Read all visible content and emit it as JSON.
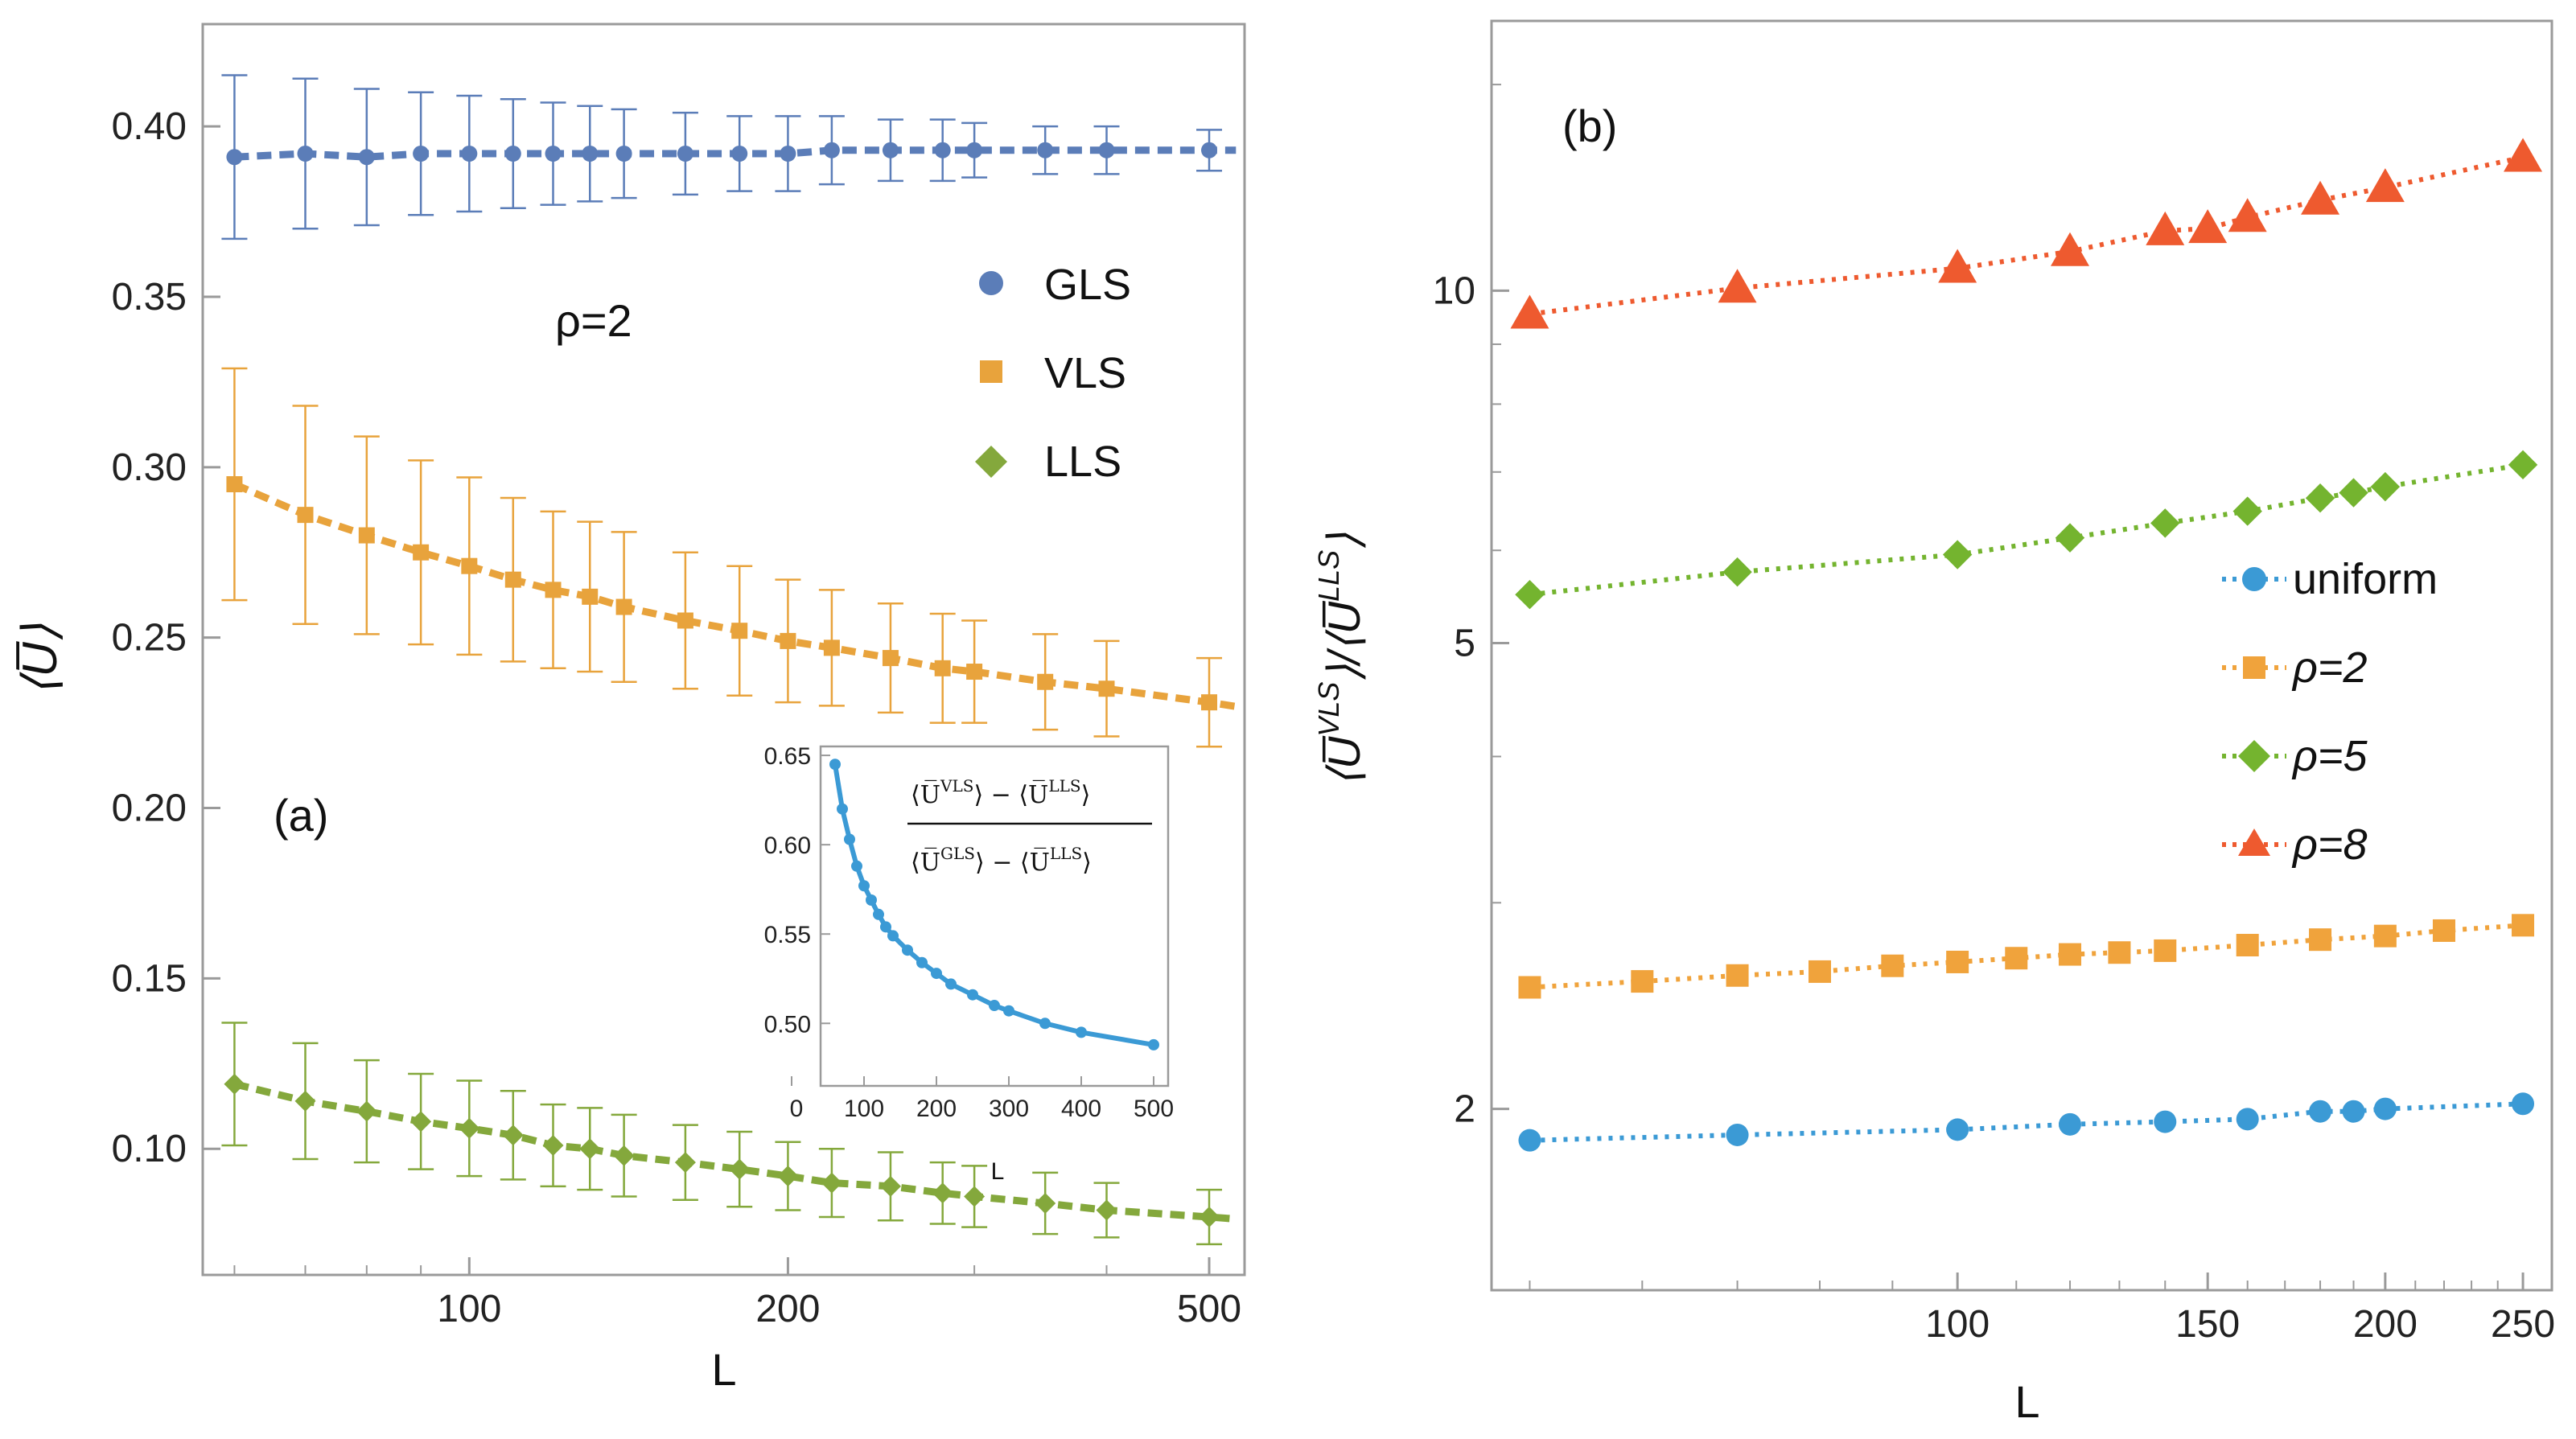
{
  "chart_data": [
    {
      "id": "a",
      "type": "scatter",
      "panel_label": "(a)",
      "annotation": "ρ=2",
      "xlabel": "L",
      "ylabel": "⟨U̅⟩",
      "xscale": "log",
      "xlim": [
        56,
        540
      ],
      "ylim": [
        0.063,
        0.43
      ],
      "xticks": [
        100,
        200,
        500
      ],
      "yticks": [
        0.1,
        0.15,
        0.2,
        0.25,
        0.3,
        0.35,
        0.4
      ],
      "ytick_labels": [
        "0.10",
        "0.15",
        "0.20",
        "0.25",
        "0.30",
        "0.35",
        "0.40"
      ],
      "legend_position": "right",
      "x": [
        60,
        70,
        80,
        90,
        100,
        110,
        120,
        130,
        140,
        160,
        180,
        200,
        220,
        250,
        280,
        300,
        350,
        400,
        500
      ],
      "series": [
        {
          "name": "GLS",
          "marker": "circle",
          "color": "#5B7DB8",
          "values": [
            0.391,
            0.392,
            0.391,
            0.392,
            0.392,
            0.392,
            0.392,
            0.392,
            0.392,
            0.392,
            0.392,
            0.392,
            0.393,
            0.393,
            0.393,
            0.393,
            0.393,
            0.393,
            0.393
          ],
          "errors": [
            0.024,
            0.022,
            0.02,
            0.018,
            0.017,
            0.016,
            0.015,
            0.014,
            0.013,
            0.012,
            0.011,
            0.011,
            0.01,
            0.009,
            0.009,
            0.008,
            0.007,
            0.007,
            0.006
          ]
        },
        {
          "name": "VLS",
          "marker": "square",
          "color": "#E8A33C",
          "values": [
            0.295,
            0.286,
            0.28,
            0.275,
            0.271,
            0.267,
            0.264,
            0.262,
            0.259,
            0.255,
            0.252,
            0.249,
            0.247,
            0.244,
            0.241,
            0.24,
            0.237,
            0.235,
            0.231
          ],
          "errors": [
            0.034,
            0.032,
            0.029,
            0.027,
            0.026,
            0.024,
            0.023,
            0.022,
            0.022,
            0.02,
            0.019,
            0.018,
            0.017,
            0.016,
            0.016,
            0.015,
            0.014,
            0.014,
            0.013
          ]
        },
        {
          "name": "LLS",
          "marker": "diamond",
          "color": "#84A83C",
          "values": [
            0.119,
            0.114,
            0.111,
            0.108,
            0.106,
            0.104,
            0.101,
            0.1,
            0.098,
            0.096,
            0.094,
            0.092,
            0.09,
            0.089,
            0.087,
            0.086,
            0.084,
            0.082,
            0.08
          ],
          "errors": [
            0.018,
            0.017,
            0.015,
            0.014,
            0.014,
            0.013,
            0.012,
            0.012,
            0.012,
            0.011,
            0.011,
            0.01,
            0.01,
            0.01,
            0.009,
            0.009,
            0.009,
            0.008,
            0.008
          ]
        }
      ],
      "inset": {
        "type": "line",
        "xlabel": "L",
        "xlim": [
          40,
          520
        ],
        "ylim": [
          0.465,
          0.655
        ],
        "xticks": [
          100,
          200,
          300,
          400,
          500
        ],
        "yticks": [
          0.5,
          0.55,
          0.6,
          0.65
        ],
        "ytick_labels": [
          "0.50",
          "0.55",
          "0.60",
          "0.65"
        ],
        "formula_numerator": [
          "⟨U̅",
          "VLS",
          "⟩ − ⟨U̅",
          "LLS",
          "⟩"
        ],
        "formula_denominator": [
          "⟨U̅",
          "GLS",
          "⟩ − ⟨U̅",
          "LLS",
          "⟩"
        ],
        "color": "#3B9AD5",
        "x": [
          60,
          70,
          80,
          90,
          100,
          110,
          120,
          130,
          140,
          160,
          180,
          200,
          220,
          250,
          280,
          300,
          350,
          400,
          500
        ],
        "y": [
          0.645,
          0.62,
          0.603,
          0.588,
          0.577,
          0.569,
          0.561,
          0.554,
          0.549,
          0.541,
          0.534,
          0.528,
          0.522,
          0.516,
          0.51,
          0.507,
          0.5,
          0.495,
          0.488
        ]
      }
    },
    {
      "id": "b",
      "type": "scatter",
      "panel_label": "(b)",
      "xlabel": "L",
      "ylabel_parts": [
        "⟨U̅",
        "VLS",
        "⟩/⟨U̅",
        "LLS",
        "⟩"
      ],
      "xscale": "log",
      "yscale": "log",
      "xlim": [
        47,
        262
      ],
      "ylim": [
        1.4,
        17
      ],
      "xticks": [
        100,
        150,
        200,
        250
      ],
      "yticks": [
        2,
        5,
        10
      ],
      "legend_position": "right",
      "x": [
        50,
        60,
        70,
        80,
        90,
        100,
        110,
        120,
        130,
        140,
        150,
        160,
        180,
        190,
        200,
        220,
        250
      ],
      "series": [
        {
          "name": "uniform",
          "marker": "circle",
          "color": "#3B9AD5",
          "x": [
            50,
            70,
            100,
            120,
            140,
            160,
            180,
            190,
            200,
            250
          ],
          "values": [
            1.88,
            1.9,
            1.92,
            1.94,
            1.95,
            1.96,
            1.99,
            1.99,
            2.0,
            2.02
          ]
        },
        {
          "name": "ρ=2",
          "marker": "square",
          "color": "#F0A33C",
          "x": [
            50,
            60,
            70,
            80,
            90,
            100,
            110,
            120,
            130,
            140,
            160,
            180,
            200,
            220,
            250
          ],
          "values": [
            2.54,
            2.57,
            2.6,
            2.62,
            2.65,
            2.67,
            2.69,
            2.71,
            2.72,
            2.73,
            2.76,
            2.79,
            2.81,
            2.84,
            2.87
          ]
        },
        {
          "name": "ρ=5",
          "marker": "diamond",
          "color": "#74B42F",
          "x": [
            50,
            70,
            100,
            120,
            140,
            160,
            180,
            190,
            200,
            250
          ],
          "values": [
            5.5,
            5.75,
            5.95,
            6.15,
            6.33,
            6.48,
            6.65,
            6.72,
            6.8,
            7.1
          ]
        },
        {
          "name": "ρ=8",
          "marker": "triangle",
          "color": "#EE5A2F",
          "x": [
            50,
            70,
            100,
            120,
            140,
            150,
            160,
            180,
            200,
            250
          ],
          "values": [
            9.55,
            10.05,
            10.45,
            10.8,
            11.25,
            11.3,
            11.55,
            11.95,
            12.25,
            13.0
          ]
        }
      ]
    }
  ]
}
